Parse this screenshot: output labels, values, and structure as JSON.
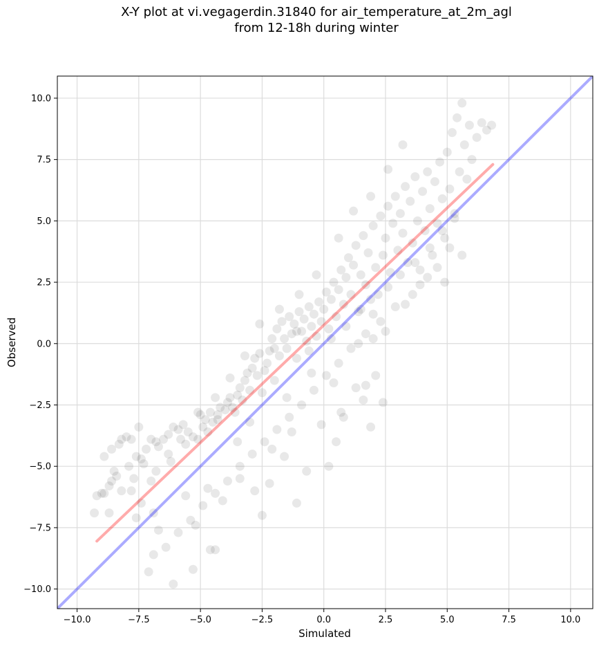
{
  "chart_data": {
    "type": "scatter",
    "title_line1": "X-Y plot at vi.vegagerdin.31840 for air_temperature_at_2m_agl",
    "title_line2": "from 12-18h during winter",
    "xlabel": "Simulated",
    "ylabel": "Observed",
    "xlim": [
      -10.8,
      10.9
    ],
    "ylim": [
      -10.8,
      10.9
    ],
    "xticks": [
      -10.0,
      -7.5,
      -5.0,
      -2.5,
      0.0,
      2.5,
      5.0,
      7.5,
      10.0
    ],
    "yticks": [
      -10.0,
      -7.5,
      -5.0,
      -2.5,
      0.0,
      2.5,
      5.0,
      7.5,
      10.0
    ],
    "xtick_labels": [
      "−10.0",
      "−7.5",
      "−5.0",
      "−2.5",
      "0.0",
      "2.5",
      "5.0",
      "7.5",
      "10.0"
    ],
    "ytick_labels": [
      "−10.0",
      "−7.5",
      "−5.0",
      "−2.5",
      "0.0",
      "2.5",
      "5.0",
      "7.5",
      "10.0"
    ],
    "grid": true,
    "point_color": "#000000",
    "identity_line": {
      "color": "#0000ff",
      "from": [
        -10.8,
        -10.8
      ],
      "to": [
        10.9,
        10.9
      ]
    },
    "fit_line": {
      "color": "#ff0000",
      "from": [
        -9.2,
        -8.05
      ],
      "to": [
        6.85,
        7.3
      ]
    },
    "points": [
      [
        -9.3,
        -6.9
      ],
      [
        -9.2,
        -6.2
      ],
      [
        -9.0,
        -6.1
      ],
      [
        -8.9,
        -6.1
      ],
      [
        -8.7,
        -5.8
      ],
      [
        -8.6,
        -5.6
      ],
      [
        -8.5,
        -5.2
      ],
      [
        -8.6,
        -4.3
      ],
      [
        -8.3,
        -4.1
      ],
      [
        -8.2,
        -3.9
      ],
      [
        -8.0,
        -3.8
      ],
      [
        -7.8,
        -3.9
      ],
      [
        -7.9,
        -5.0
      ],
      [
        -7.7,
        -5.5
      ],
      [
        -7.6,
        -4.6
      ],
      [
        -7.4,
        -4.7
      ],
      [
        -7.3,
        -4.9
      ],
      [
        -7.5,
        -3.4
      ],
      [
        -7.2,
        -4.3
      ],
      [
        -7.0,
        -3.9
      ],
      [
        -6.8,
        -4.0
      ],
      [
        -6.7,
        -4.2
      ],
      [
        -6.5,
        -3.9
      ],
      [
        -6.3,
        -3.7
      ],
      [
        -6.1,
        -3.4
      ],
      [
        -5.9,
        -3.5
      ],
      [
        -5.8,
        -3.9
      ],
      [
        -5.7,
        -3.3
      ],
      [
        -5.5,
        -3.6
      ],
      [
        -5.3,
        -3.8
      ],
      [
        -5.1,
        -3.9
      ],
      [
        -4.9,
        -3.4
      ],
      [
        -4.8,
        -3.1
      ],
      [
        -4.6,
        -2.8
      ],
      [
        -4.7,
        -3.6
      ],
      [
        -4.5,
        -3.2
      ],
      [
        -4.3,
        -2.9
      ],
      [
        -4.2,
        -2.6
      ],
      [
        -4.0,
        -2.7
      ],
      [
        -3.9,
        -2.4
      ],
      [
        -3.8,
        -2.2
      ],
      [
        -3.7,
        -2.6
      ],
      [
        -3.6,
        -2.8
      ],
      [
        -3.5,
        -2.1
      ],
      [
        -3.4,
        -1.8
      ],
      [
        -3.3,
        -2.3
      ],
      [
        -3.2,
        -1.5
      ],
      [
        -3.1,
        -1.2
      ],
      [
        -3.0,
        -1.9
      ],
      [
        -2.9,
        -1.0
      ],
      [
        -2.8,
        -0.6
      ],
      [
        -2.7,
        -1.3
      ],
      [
        -2.6,
        -0.4
      ],
      [
        -2.5,
        -2.0
      ],
      [
        -2.4,
        -1.1
      ],
      [
        -2.3,
        -0.8
      ],
      [
        -2.2,
        -0.3
      ],
      [
        -2.1,
        0.2
      ],
      [
        -2.0,
        -1.5
      ],
      [
        -1.9,
        0.6
      ],
      [
        -1.8,
        -0.5
      ],
      [
        -1.7,
        0.9
      ],
      [
        -1.6,
        0.2
      ],
      [
        -1.5,
        -0.2
      ],
      [
        -1.4,
        1.1
      ],
      [
        -1.3,
        0.4
      ],
      [
        -1.2,
        0.8
      ],
      [
        -1.1,
        -0.6
      ],
      [
        -1.0,
        1.3
      ],
      [
        -0.9,
        0.5
      ],
      [
        -0.8,
        1.0
      ],
      [
        -0.7,
        0.1
      ],
      [
        -0.6,
        1.5
      ],
      [
        -0.5,
        0.7
      ],
      [
        -0.4,
        1.2
      ],
      [
        -0.3,
        0.3
      ],
      [
        -0.2,
        1.7
      ],
      [
        -0.1,
        0.9
      ],
      [
        0.0,
        1.4
      ],
      [
        0.1,
        2.1
      ],
      [
        0.2,
        0.6
      ],
      [
        0.3,
        1.8
      ],
      [
        0.4,
        2.5
      ],
      [
        0.5,
        1.1
      ],
      [
        0.6,
        2.2
      ],
      [
        0.7,
        3.0
      ],
      [
        0.8,
        1.6
      ],
      [
        0.9,
        2.7
      ],
      [
        1.0,
        3.5
      ],
      [
        1.1,
        2.0
      ],
      [
        1.2,
        3.2
      ],
      [
        1.3,
        4.0
      ],
      [
        1.4,
        1.3
      ],
      [
        1.5,
        2.8
      ],
      [
        1.6,
        4.4
      ],
      [
        1.7,
        2.4
      ],
      [
        1.8,
        3.7
      ],
      [
        1.9,
        1.8
      ],
      [
        2.0,
        4.8
      ],
      [
        2.1,
        3.1
      ],
      [
        2.2,
        2.0
      ],
      [
        2.3,
        5.2
      ],
      [
        2.4,
        3.6
      ],
      [
        2.5,
        4.3
      ],
      [
        2.6,
        5.6
      ],
      [
        2.7,
        2.9
      ],
      [
        2.8,
        4.9
      ],
      [
        2.9,
        6.0
      ],
      [
        3.0,
        3.8
      ],
      [
        3.1,
        5.3
      ],
      [
        3.2,
        4.5
      ],
      [
        3.3,
        6.4
      ],
      [
        3.4,
        3.3
      ],
      [
        3.5,
        5.8
      ],
      [
        3.6,
        4.1
      ],
      [
        3.7,
        6.8
      ],
      [
        3.8,
        5.0
      ],
      [
        3.9,
        3.0
      ],
      [
        4.0,
        6.2
      ],
      [
        4.1,
        4.6
      ],
      [
        4.2,
        7.0
      ],
      [
        4.3,
        5.5
      ],
      [
        4.4,
        3.6
      ],
      [
        4.5,
        6.6
      ],
      [
        4.6,
        4.9
      ],
      [
        4.7,
        7.4
      ],
      [
        4.8,
        5.9
      ],
      [
        4.9,
        4.3
      ],
      [
        5.0,
        7.8
      ],
      [
        5.1,
        6.3
      ],
      [
        5.2,
        8.6
      ],
      [
        5.3,
        5.3
      ],
      [
        5.4,
        9.2
      ],
      [
        5.5,
        7.0
      ],
      [
        5.6,
        9.8
      ],
      [
        5.7,
        8.1
      ],
      [
        5.8,
        6.7
      ],
      [
        5.9,
        8.9
      ],
      [
        6.0,
        7.5
      ],
      [
        6.2,
        8.4
      ],
      [
        6.4,
        9.0
      ],
      [
        6.6,
        8.7
      ],
      [
        6.8,
        8.9
      ],
      [
        5.6,
        3.6
      ],
      [
        4.9,
        2.5
      ],
      [
        4.2,
        2.7
      ],
      [
        3.6,
        2.0
      ],
      [
        2.9,
        1.5
      ],
      [
        2.3,
        0.9
      ],
      [
        1.7,
        0.4
      ],
      [
        1.1,
        -0.2
      ],
      [
        0.6,
        -0.8
      ],
      [
        0.1,
        -1.3
      ],
      [
        -0.4,
        -1.9
      ],
      [
        -0.9,
        -2.5
      ],
      [
        -1.4,
        -3.0
      ],
      [
        -1.9,
        -3.5
      ],
      [
        -2.4,
        -4.0
      ],
      [
        -2.9,
        -4.5
      ],
      [
        -3.4,
        -5.0
      ],
      [
        -3.9,
        -5.6
      ],
      [
        -4.4,
        -6.1
      ],
      [
        -4.9,
        -6.6
      ],
      [
        -5.4,
        -7.2
      ],
      [
        -5.9,
        -7.7
      ],
      [
        -6.4,
        -8.3
      ],
      [
        -6.9,
        -8.6
      ],
      [
        -7.1,
        -9.3
      ],
      [
        -6.1,
        -9.8
      ],
      [
        -5.3,
        -9.2
      ],
      [
        -4.6,
        -8.4
      ],
      [
        -4.4,
        -8.4
      ],
      [
        -5.2,
        -7.4
      ],
      [
        -6.7,
        -7.6
      ],
      [
        -6.9,
        -6.9
      ],
      [
        -7.4,
        -6.5
      ],
      [
        -7.6,
        -7.1
      ],
      [
        -8.2,
        -6.0
      ],
      [
        -8.7,
        -6.9
      ],
      [
        -2.5,
        -7.0
      ],
      [
        -1.1,
        -6.5
      ],
      [
        -0.7,
        -5.2
      ],
      [
        0.2,
        -5.0
      ],
      [
        0.5,
        -4.0
      ],
      [
        0.8,
        -3.0
      ],
      [
        1.6,
        -2.3
      ],
      [
        1.7,
        -1.7
      ],
      [
        2.1,
        -1.3
      ],
      [
        2.4,
        -2.4
      ],
      [
        1.9,
        -3.4
      ],
      [
        -1.6,
        -4.6
      ],
      [
        -2.1,
        -4.3
      ],
      [
        -3.5,
        -4.0
      ],
      [
        -4.3,
        -3.1
      ],
      [
        -5.1,
        -2.8
      ],
      [
        -6.3,
        -4.5
      ],
      [
        -6.8,
        -5.2
      ],
      [
        -3.0,
        -3.2
      ],
      [
        -1.5,
        -2.2
      ],
      [
        -0.5,
        -1.2
      ],
      [
        0.3,
        0.2
      ],
      [
        0.9,
        0.7
      ],
      [
        1.5,
        1.4
      ],
      [
        2.0,
        1.2
      ],
      [
        2.6,
        2.3
      ],
      [
        3.1,
        2.8
      ],
      [
        3.7,
        3.3
      ],
      [
        4.3,
        3.9
      ],
      [
        4.8,
        4.6
      ],
      [
        5.3,
        5.1
      ],
      [
        2.5,
        0.5
      ],
      [
        2.0,
        0.2
      ],
      [
        1.4,
        0.0
      ],
      [
        3.3,
        1.6
      ],
      [
        3.9,
        2.4
      ],
      [
        4.6,
        3.1
      ],
      [
        5.1,
        3.9
      ],
      [
        1.2,
        5.4
      ],
      [
        1.9,
        6.0
      ],
      [
        2.6,
        7.1
      ],
      [
        3.2,
        8.1
      ],
      [
        0.6,
        4.3
      ],
      [
        -0.3,
        2.8
      ],
      [
        -1.0,
        2.0
      ],
      [
        -1.8,
        1.4
      ],
      [
        -2.6,
        0.8
      ],
      [
        -3.2,
        -0.5
      ],
      [
        -3.8,
        -1.4
      ],
      [
        -4.4,
        -2.2
      ],
      [
        -5.0,
        -2.9
      ],
      [
        -5.6,
        -4.1
      ],
      [
        -6.2,
        -4.8
      ],
      [
        -7.0,
        -5.6
      ],
      [
        -7.8,
        -6.0
      ],
      [
        -8.4,
        -5.4
      ],
      [
        -8.9,
        -4.6
      ],
      [
        -1.3,
        -3.6
      ],
      [
        -0.1,
        -3.3
      ],
      [
        0.7,
        -2.8
      ],
      [
        1.3,
        -1.8
      ],
      [
        -2.2,
        -5.7
      ],
      [
        -2.8,
        -6.0
      ],
      [
        -3.4,
        -5.5
      ],
      [
        -4.1,
        -6.4
      ],
      [
        -4.7,
        -5.9
      ],
      [
        -5.6,
        -6.2
      ],
      [
        0.4,
        -1.6
      ],
      [
        -0.6,
        -0.3
      ],
      [
        -1.1,
        0.5
      ],
      [
        -2.0,
        -0.2
      ]
    ]
  }
}
